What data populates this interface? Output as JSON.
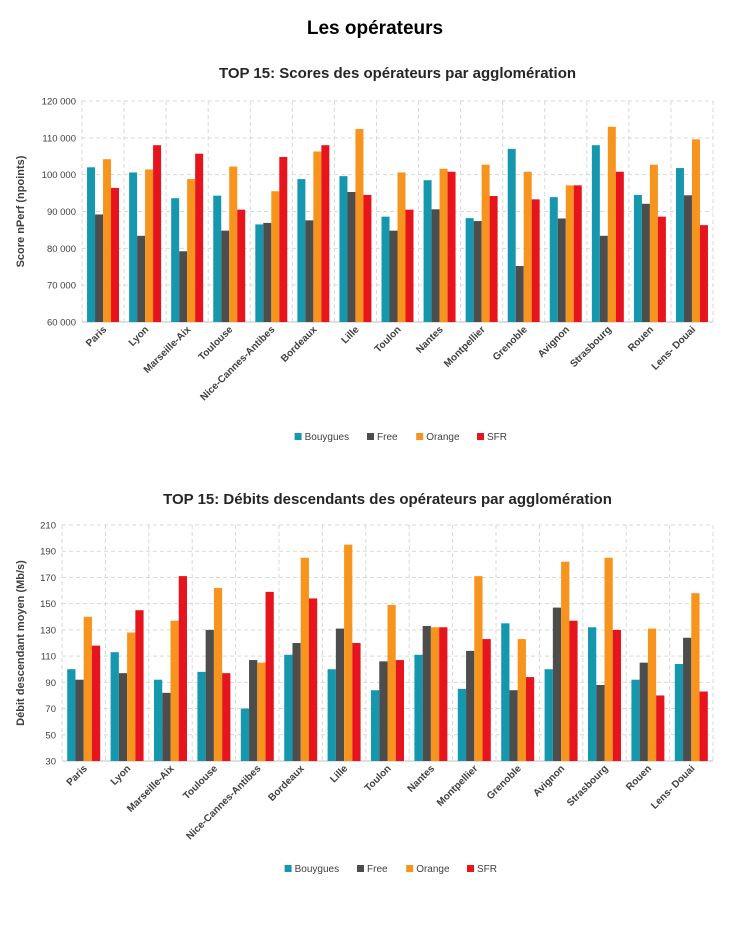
{
  "page_title": "Les opérateurs",
  "chart_data": [
    {
      "type": "bar",
      "title": "TOP 15: Scores des opérateurs par agglomération",
      "xlabel": "",
      "ylabel": "Score nPerf (npoints)",
      "ylim": [
        60000,
        120000
      ],
      "ytick_step": 10000,
      "ytick_labels": [
        "60 000",
        "70 000",
        "80 000",
        "90 000",
        "100 000",
        "110 000",
        "120 000"
      ],
      "grid": true,
      "legend_position": "bottom",
      "categories": [
        "Paris",
        "Lyon",
        "Marseille-Aix",
        "Toulouse",
        "Nice-Cannes-Antibes",
        "Bordeaux",
        "Lille",
        "Toulon",
        "Nantes",
        "Montpellier",
        "Grenoble",
        "Avignon",
        "Strasbourg",
        "Rouen",
        "Lens- Douai"
      ],
      "series": [
        {
          "name": "Bouygues",
          "color": "#1598ad",
          "values": [
            102000,
            100600,
            93600,
            94300,
            86500,
            98800,
            99600,
            88600,
            98500,
            88200,
            107000,
            93900,
            108000,
            94500,
            101800
          ]
        },
        {
          "name": "Free",
          "color": "#4d4d4d",
          "values": [
            89200,
            83400,
            79200,
            84800,
            86900,
            87600,
            95300,
            84800,
            90600,
            87400,
            75200,
            88100,
            83400,
            92100,
            94400
          ]
        },
        {
          "name": "Orange",
          "color": "#f7941d",
          "values": [
            104200,
            101400,
            98800,
            102200,
            95500,
            106300,
            112400,
            100600,
            101600,
            102700,
            100800,
            97100,
            113000,
            102700,
            109600
          ]
        },
        {
          "name": "SFR",
          "color": "#e8141d",
          "values": [
            96400,
            108000,
            105700,
            90500,
            104800,
            108000,
            94500,
            90500,
            100800,
            94200,
            93300,
            97100,
            100800,
            88600,
            86300
          ]
        }
      ]
    },
    {
      "type": "bar",
      "title": "TOP 15: Débits descendants des opérateurs par agglomération",
      "xlabel": "",
      "ylabel": "Débit descendant moyen (Mb/s)",
      "ylim": [
        30,
        210
      ],
      "ytick_step": 20,
      "ytick_labels": [
        "30",
        "50",
        "70",
        "90",
        "110",
        "130",
        "150",
        "170",
        "190",
        "210"
      ],
      "grid": true,
      "legend_position": "bottom",
      "categories": [
        "Paris",
        "Lyon",
        "Marseille-Aix",
        "Toulouse",
        "Nice-Cannes-Antibes",
        "Bordeaux",
        "Lille",
        "Toulon",
        "Nantes",
        "Montpellier",
        "Grenoble",
        "Avignon",
        "Strasbourg",
        "Rouen",
        "Lens- Douai"
      ],
      "series": [
        {
          "name": "Bouygues",
          "color": "#1598ad",
          "values": [
            100,
            113,
            92,
            98,
            70,
            111,
            100,
            84,
            111,
            85,
            135,
            100,
            132,
            92,
            104
          ]
        },
        {
          "name": "Free",
          "color": "#4d4d4d",
          "values": [
            92,
            97,
            82,
            130,
            107,
            120,
            131,
            106,
            133,
            114,
            84,
            147,
            88,
            105,
            124
          ]
        },
        {
          "name": "Orange",
          "color": "#f7941d",
          "values": [
            140,
            128,
            137,
            162,
            105,
            185,
            195,
            149,
            132,
            171,
            123,
            182,
            185,
            131,
            158
          ]
        },
        {
          "name": "SFR",
          "color": "#e8141d",
          "values": [
            118,
            145,
            171,
            97,
            159,
            154,
            120,
            107,
            132,
            123,
            94,
            137,
            130,
            80,
            83
          ]
        }
      ]
    }
  ]
}
